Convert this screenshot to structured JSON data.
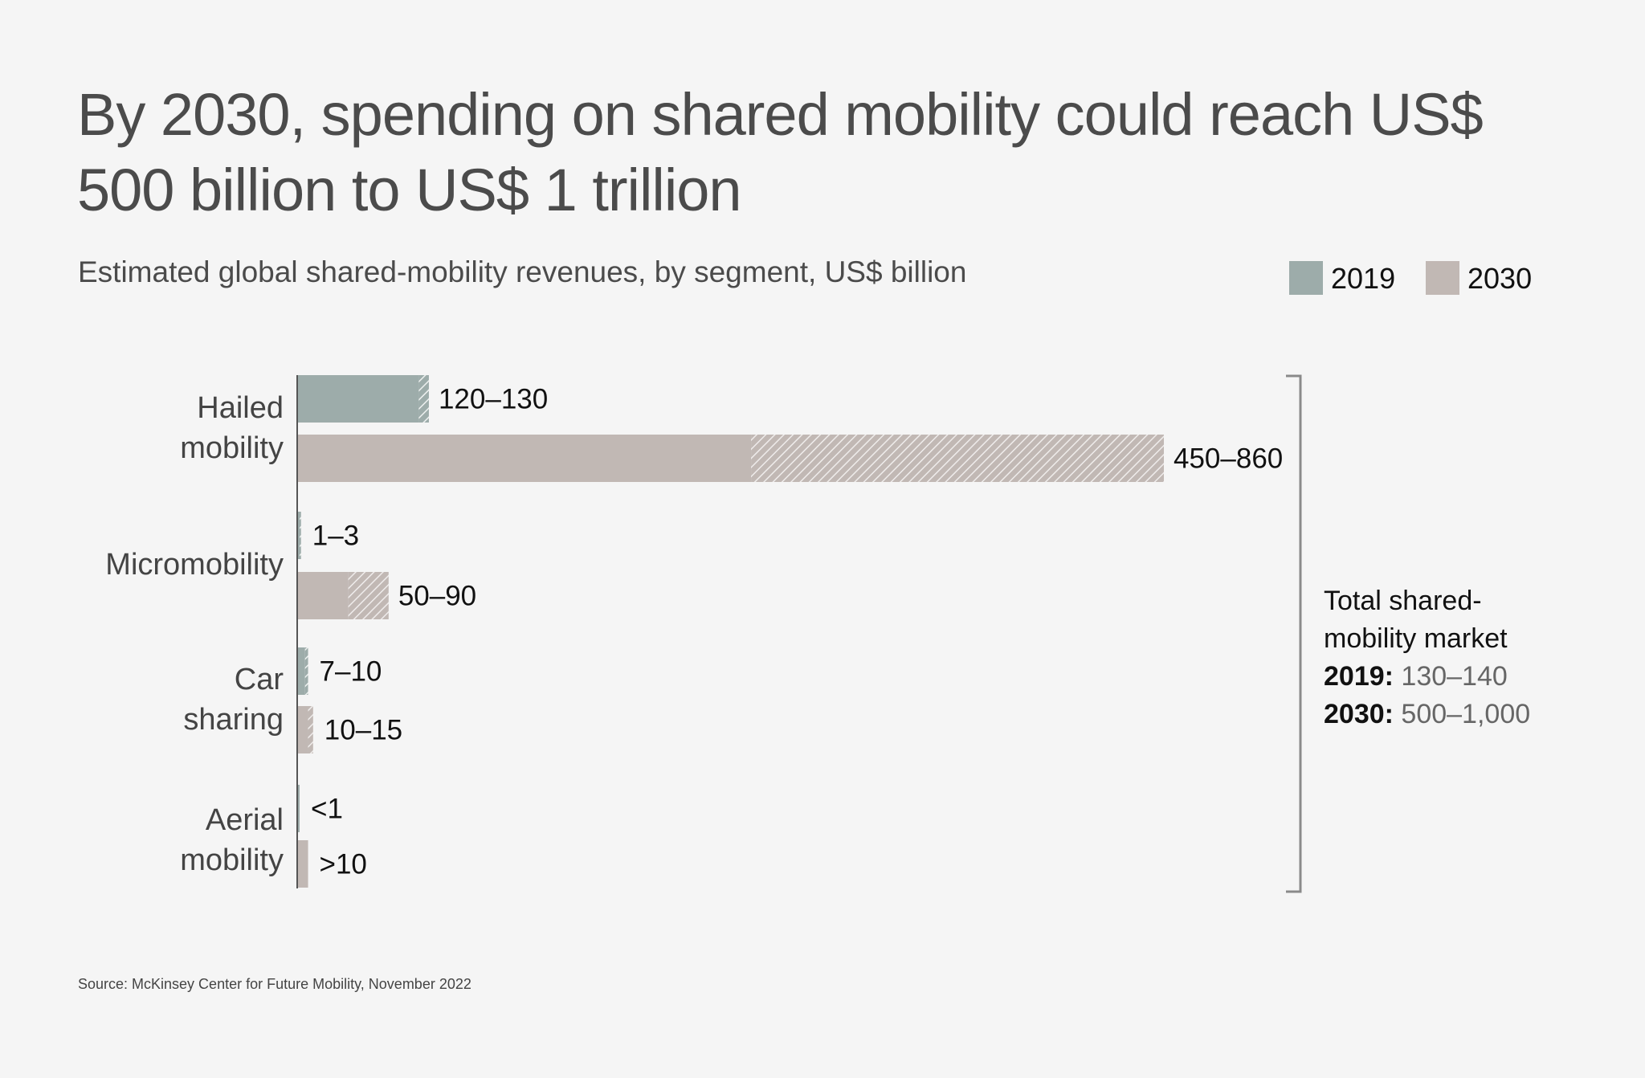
{
  "title": "By 2030, spending on shared mobility could reach US$ 500 billion to US$ 1 trillion",
  "subtitle": "Estimated global shared-mobility revenues, by segment, US$ billion",
  "source": "Source: McKinsey Center for Future Mobility, November 2022",
  "colors": {
    "background": "#f5f5f5",
    "s2019": "#9dacaa",
    "s2030": "#c1b8b4",
    "bracket": "#8a8a8a"
  },
  "chart_data": {
    "type": "bar",
    "orientation": "horizontal",
    "note": "",
    "legend": [
      "2019",
      "2030"
    ],
    "legend_position": "top-right",
    "grid": false,
    "xlim": [
      0,
      860
    ],
    "categories": [
      "Hailed\nmobility",
      "Micromobility",
      "Car\nsharing",
      "Aerial\nmobility"
    ],
    "series": [
      {
        "name": "2019",
        "ranges": [
          [
            120,
            130
          ],
          [
            1,
            3
          ],
          [
            7,
            10
          ],
          [
            1,
            1
          ]
        ],
        "labels": [
          "120–130",
          "1–3",
          "7–10",
          "<1"
        ]
      },
      {
        "name": "2030",
        "ranges": [
          [
            450,
            860
          ],
          [
            50,
            90
          ],
          [
            10,
            15
          ],
          [
            10,
            10
          ]
        ],
        "labels": [
          "450–860",
          "50–90",
          "10–15",
          ">10"
        ]
      }
    ],
    "range_encoding": "solid bar to low estimate, hatched extension to high estimate"
  },
  "total": {
    "heading": "Total shared-mobility market",
    "heading_line1": "Total shared-",
    "heading_line2": "mobility market",
    "y2019_label": "2019:",
    "y2019_value": "130–140",
    "y2030_label": "2030:",
    "y2030_value": "500–1,000"
  }
}
